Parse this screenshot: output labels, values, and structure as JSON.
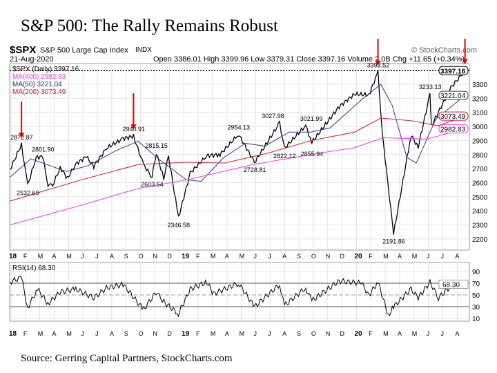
{
  "title": "S&P 500: The Rally Remains Robust",
  "source": "Source: Gerring Capital Partners, StockCharts.com",
  "header": {
    "symbol": "$SPX",
    "name": "S&P 500 Large Cap Index",
    "exchange": "INDX",
    "date": "21-Aug-2020",
    "credit": "© StockCharts.com",
    "quote": "Open 3386.01  High 3399.96  Low 3379.31  Close 3397.16  Volume 2.0B  Chg +11.65 (+0.34%)"
  },
  "legend": {
    "main": "$SPX (Daily) 3397.16",
    "ma400": "MA(400) 2982.83",
    "ma50": "MA(50) 3221.04",
    "ma200": "MA(200) 3073.49",
    "rsi": "RSI(14) 68.30"
  },
  "colors": {
    "price": "#000000",
    "down": "#e0102f",
    "ma400": "#ff33ff",
    "ma50": "#333399",
    "ma200": "#dd1133",
    "arrow": "#e00000"
  },
  "chart_data": [
    {
      "type": "line",
      "ylim": [
        2100,
        3420
      ],
      "yticks": [
        2200,
        2300,
        2400,
        2500,
        2600,
        2700,
        2800,
        2900,
        3000,
        3100,
        3200,
        3300
      ],
      "xticks": [
        "18",
        "F",
        "M",
        "A",
        "M",
        "J",
        "J",
        "A",
        "S",
        "O",
        "N",
        "D",
        "19",
        "F",
        "M",
        "A",
        "M",
        "J",
        "J",
        "A",
        "S",
        "O",
        "N",
        "D",
        "20",
        "F",
        "M",
        "A",
        "M",
        "J",
        "J",
        "A"
      ],
      "series": [
        {
          "name": "$SPX",
          "x": [
            "2018-01-02",
            "2018-01-26",
            "2018-02-08",
            "2018-02-26",
            "2018-03-12",
            "2018-03-23",
            "2018-04-02",
            "2018-04-18",
            "2018-05-03",
            "2018-05-21",
            "2018-06-12",
            "2018-06-28",
            "2018-07-25",
            "2018-08-29",
            "2018-09-20",
            "2018-10-11",
            "2018-10-29",
            "2018-11-07",
            "2018-11-23",
            "2018-12-03",
            "2018-12-24",
            "2019-01-18",
            "2019-02-22",
            "2019-03-22",
            "2019-04-30",
            "2019-06-03",
            "2019-07-26",
            "2019-08-05",
            "2019-09-19",
            "2019-10-02",
            "2019-11-29",
            "2019-12-31",
            "2020-01-31",
            "2020-02-19",
            "2020-02-28",
            "2020-03-23",
            "2020-04-29",
            "2020-05-14",
            "2020-06-08",
            "2020-06-11",
            "2020-07-22",
            "2020-08-21"
          ],
          "y": [
            2695,
            2872,
            2581,
            2780,
            2786,
            2588,
            2581,
            2708,
            2630,
            2733,
            2786,
            2716,
            2846,
            2914,
            2931,
            2728,
            2641,
            2813,
            2632,
            2790,
            2351,
            2670,
            2792,
            2800,
            2945,
            2744,
            3025,
            2844,
            3006,
            2887,
            3141,
            3230,
            3225,
            3386,
            2954,
            2237,
            2939,
            2852,
            3232,
            3002,
            3276,
            3397
          ]
        },
        {
          "name": "MA(50)",
          "x": [
            "2018-01-02",
            "2018-02-15",
            "2018-03-20",
            "2018-05-01",
            "2018-06-15",
            "2018-08-15",
            "2018-09-30",
            "2018-11-15",
            "2019-01-10",
            "2019-02-10",
            "2019-03-30",
            "2019-05-15",
            "2019-06-25",
            "2019-08-15",
            "2019-09-30",
            "2019-11-10",
            "2020-01-15",
            "2020-02-25",
            "2020-03-20",
            "2020-04-20",
            "2020-05-10",
            "2020-06-20",
            "2020-08-21"
          ],
          "y": [
            2640,
            2770,
            2730,
            2680,
            2720,
            2830,
            2895,
            2760,
            2620,
            2610,
            2780,
            2880,
            2860,
            2960,
            2960,
            2990,
            3190,
            3300,
            3150,
            2780,
            2740,
            3050,
            3221
          ]
        },
        {
          "name": "MA(200)",
          "x": [
            "2018-01-02",
            "2018-06-01",
            "2018-10-01",
            "2019-01-10",
            "2019-04-01",
            "2019-07-01",
            "2019-10-01",
            "2020-01-01",
            "2020-02-25",
            "2020-05-01",
            "2020-06-25",
            "2020-08-21"
          ],
          "y": [
            2470,
            2620,
            2730,
            2745,
            2740,
            2810,
            2900,
            2960,
            3060,
            3040,
            3005,
            3073
          ]
        },
        {
          "name": "MA(400)",
          "x": [
            "2018-01-02",
            "2018-06-01",
            "2018-10-01",
            "2019-01-10",
            "2019-06-01",
            "2019-10-01",
            "2020-01-01",
            "2020-03-01",
            "2020-06-01",
            "2020-08-21"
          ],
          "y": [
            2300,
            2440,
            2560,
            2620,
            2730,
            2800,
            2850,
            2920,
            2910,
            2983
          ]
        }
      ],
      "annotations": [
        {
          "date": "2018-01-26",
          "label": "2872.87"
        },
        {
          "date": "2018-02-08",
          "label": "2532.69",
          "below": true
        },
        {
          "date": "2018-03-12",
          "label": "2801.90"
        },
        {
          "date": "2018-09-20",
          "label": "2940.91"
        },
        {
          "date": "2018-11-07",
          "label": "2815.15"
        },
        {
          "date": "2018-10-29",
          "label": "2603.54",
          "below": true
        },
        {
          "date": "2018-12-24",
          "label": "2346.58",
          "below": true
        },
        {
          "date": "2019-04-30",
          "label": "2954.13"
        },
        {
          "date": "2019-06-03",
          "label": "2728.81",
          "below": true
        },
        {
          "date": "2019-07-26",
          "label": "3027.98"
        },
        {
          "date": "2019-08-05",
          "label": "2822.12",
          "below": true
        },
        {
          "date": "2019-09-19",
          "label": "3021.99"
        },
        {
          "date": "2019-10-02",
          "label": "2855.94",
          "below": true
        },
        {
          "date": "2020-02-19",
          "label": "3393.52"
        },
        {
          "date": "2020-03-23",
          "label": "2191.86",
          "below": true
        },
        {
          "date": "2020-06-08",
          "label": "3233.13"
        }
      ],
      "arrows": [
        "2018-01-26",
        "2018-09-20",
        "2020-02-19",
        "2020-08-21"
      ],
      "last_labels": [
        "3397.16",
        "3221.04",
        "3073.49",
        "2982.83"
      ]
    },
    {
      "type": "line",
      "name": "RSI(14)",
      "ylim": [
        0,
        100
      ],
      "yticks": [
        10,
        30,
        50,
        70,
        90
      ],
      "x": [
        "2018-01-02",
        "2018-01-26",
        "2018-02-08",
        "2018-03-01",
        "2018-03-23",
        "2018-04-18",
        "2018-05-21",
        "2018-06-28",
        "2018-07-25",
        "2018-08-29",
        "2018-10-11",
        "2018-11-07",
        "2018-11-23",
        "2018-12-24",
        "2019-01-18",
        "2019-02-22",
        "2019-03-08",
        "2019-04-30",
        "2019-06-03",
        "2019-07-26",
        "2019-08-05",
        "2019-09-19",
        "2019-10-02",
        "2019-11-29",
        "2020-01-15",
        "2020-01-31",
        "2020-02-19",
        "2020-03-12",
        "2020-03-23",
        "2020-04-29",
        "2020-05-14",
        "2020-06-08",
        "2020-06-26",
        "2020-07-22",
        "2020-08-21"
      ],
      "y": [
        72,
        80,
        28,
        60,
        35,
        55,
        60,
        45,
        62,
        68,
        25,
        55,
        38,
        18,
        60,
        72,
        52,
        70,
        30,
        68,
        32,
        62,
        40,
        74,
        70,
        50,
        72,
        15,
        30,
        60,
        45,
        72,
        45,
        65,
        68
      ]
    }
  ]
}
